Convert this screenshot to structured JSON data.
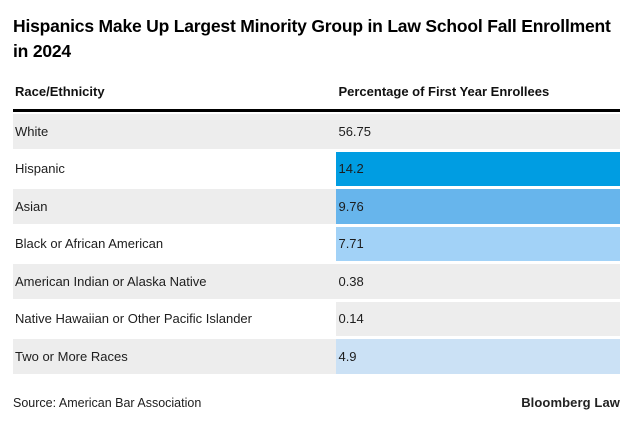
{
  "header": {
    "title": "Hispanics Make Up Largest Minority Group in Law School Fall Enrollment in 2024"
  },
  "table": {
    "col_race": "Race/Ethnicity",
    "col_pct": "Percentage of First Year Enrollees",
    "rows": [
      {
        "label": "White",
        "value": "56.75",
        "label_bg": "#ededed",
        "value_bg": "#ededed"
      },
      {
        "label": "Hispanic",
        "value": "14.2",
        "label_bg": "#ffffff",
        "value_bg": "#009de2"
      },
      {
        "label": "Asian",
        "value": "9.76",
        "label_bg": "#ededed",
        "value_bg": "#67b5ec"
      },
      {
        "label": "Black or African American",
        "value": "7.71",
        "label_bg": "#ffffff",
        "value_bg": "#a2d2f7"
      },
      {
        "label": "American Indian or Alaska Native",
        "value": "0.38",
        "label_bg": "#ededed",
        "value_bg": "#ededed"
      },
      {
        "label": "Native Hawaiian or Other Pacific Islander",
        "value": "0.14",
        "label_bg": "#ffffff",
        "value_bg": "#ededed"
      },
      {
        "label": "Two or More Races",
        "value": "4.9",
        "label_bg": "#ededed",
        "value_bg": "#cbe1f5"
      }
    ]
  },
  "footer": {
    "source": "Source: American Bar Association",
    "brand": "Bloomberg Law"
  },
  "colors": {
    "rule_black": "#000000",
    "stripe_gray": "#ededed",
    "highlight_blue": "#009de2",
    "blue_medium": "#67b5ec",
    "blue_light": "#a2d2f7",
    "blue_faint": "#cbe1f5"
  },
  "chart_data": {
    "type": "table",
    "title": "Hispanics Make Up Largest Minority Group in Law School Fall Enrollment in 2024",
    "columns": [
      "Race/Ethnicity",
      "Percentage of First Year Enrollees"
    ],
    "categories": [
      "White",
      "Hispanic",
      "Asian",
      "Black or African American",
      "American Indian or Alaska Native",
      "Native Hawaiian or Other Pacific Islander",
      "Two or More Races"
    ],
    "values": [
      56.75,
      14.2,
      9.76,
      7.71,
      0.38,
      0.14,
      4.9
    ],
    "value_unit": "percent",
    "cell_shading": {
      "Hispanic": "#009de2",
      "Asian": "#67b5ec",
      "Black or African American": "#a2d2f7",
      "Two or More Races": "#cbe1f5",
      "White": "#ededed",
      "American Indian or Alaska Native": "#ededed",
      "Native Hawaiian or Other Pacific Islander": "#ededed"
    },
    "source": "Source: American Bar Association",
    "credit": "Bloomberg Law"
  }
}
